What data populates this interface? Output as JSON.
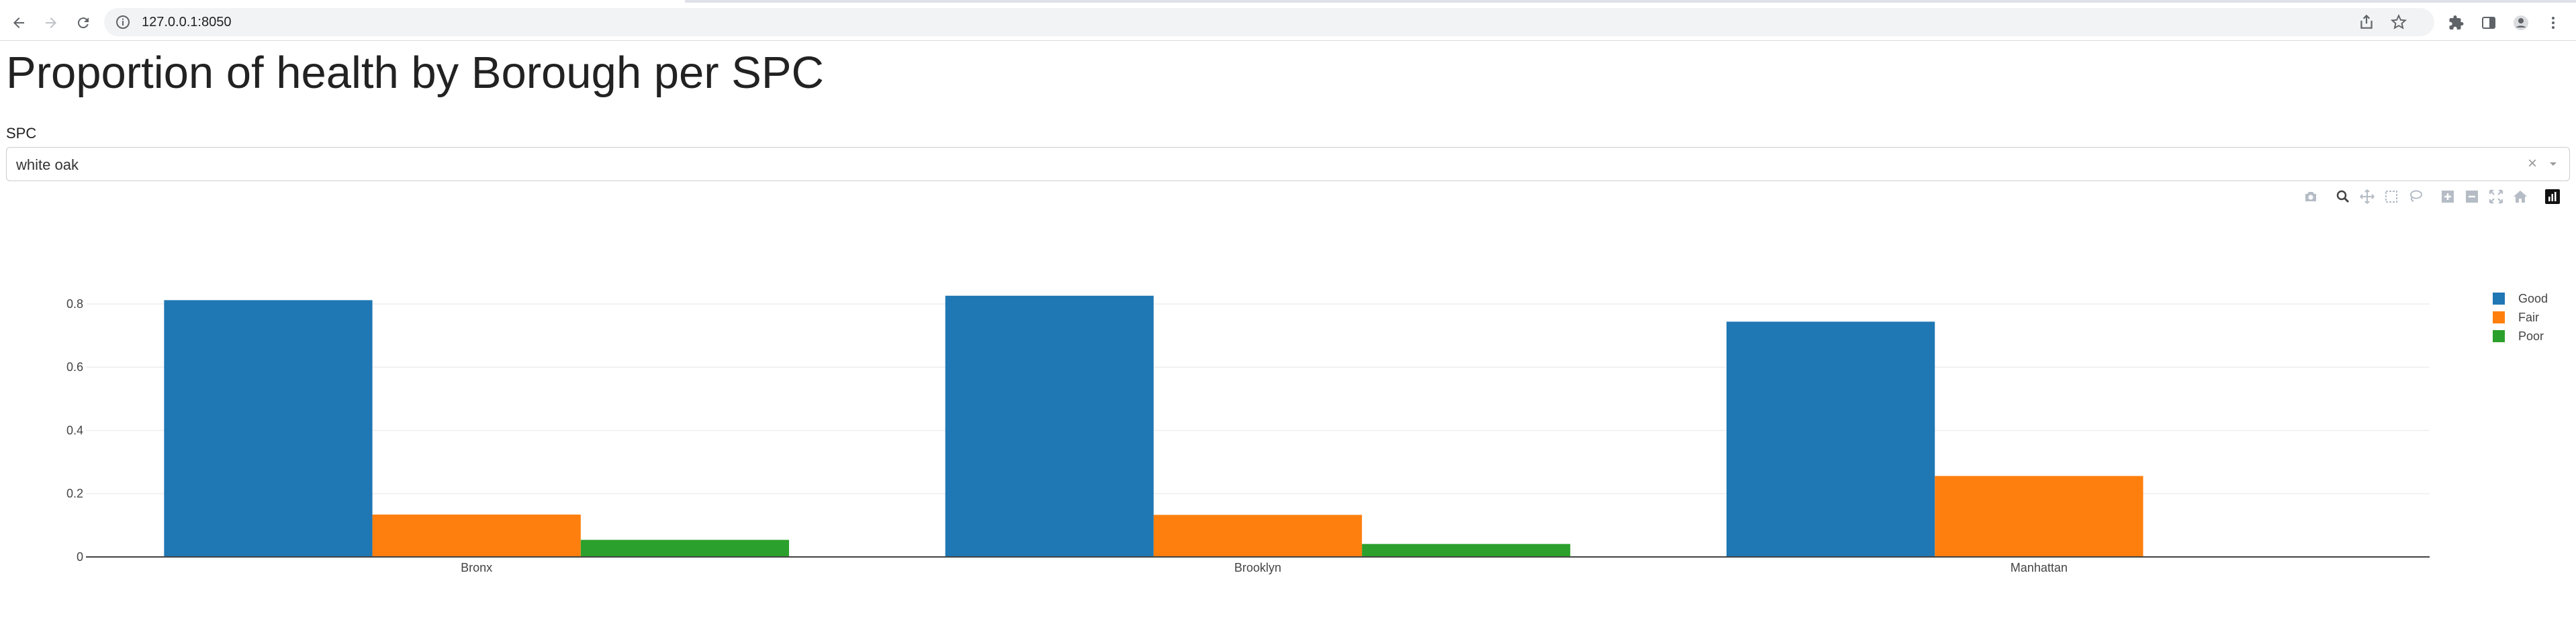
{
  "browser": {
    "url": "127.0.0.1:8050"
  },
  "page": {
    "title": "Proportion of health by Borough per SPC"
  },
  "filter": {
    "label": "SPC",
    "selected_value": "white oak",
    "clear_symbol": "×"
  },
  "icons": {
    "back": "back-arrow-icon",
    "forward": "forward-arrow-icon",
    "reload": "reload-icon",
    "site_info": "info-icon",
    "share": "share-icon",
    "bookmark": "star-icon",
    "extensions": "puzzle-icon",
    "side_panel": "side-panel-icon",
    "profile": "profile-icon",
    "menu": "kebab-menu-icon",
    "modebar": [
      "camera-icon",
      "zoom-icon",
      "pan-icon",
      "box-select-icon",
      "lasso-icon",
      "zoom-in-icon",
      "zoom-out-icon",
      "autoscale-icon",
      "reset-axes-icon",
      "plotly-logo-icon"
    ]
  },
  "chart_data": {
    "type": "bar",
    "barmode": "group",
    "categories": [
      "Bronx",
      "Brooklyn",
      "Manhattan"
    ],
    "series": [
      {
        "name": "Good",
        "color": "#1f77b4",
        "values": [
          0.812,
          0.826,
          0.744
        ]
      },
      {
        "name": "Fair",
        "color": "#ff7f0e",
        "values": [
          0.134,
          0.133,
          0.256
        ]
      },
      {
        "name": "Poor",
        "color": "#2ca02c",
        "values": [
          0.054,
          0.041,
          0
        ]
      }
    ],
    "yticks": [
      0,
      0.2,
      0.4,
      0.6,
      0.8
    ],
    "ytick_labels": [
      "0",
      "0.2",
      "0.4",
      "0.6",
      "0.8"
    ],
    "ylim": [
      0,
      0.87
    ],
    "grid": true,
    "legend_position": "top-right"
  }
}
